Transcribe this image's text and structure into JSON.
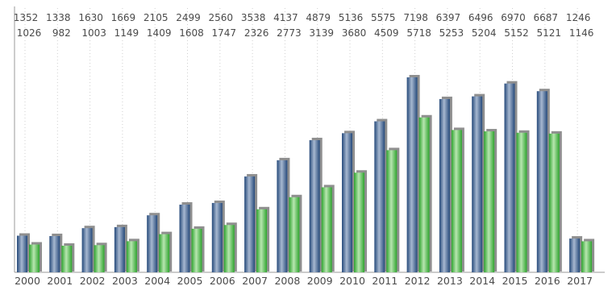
{
  "chart_data": {
    "type": "bar",
    "title": "",
    "xlabel": "",
    "ylabel": "",
    "categories": [
      "2000",
      "2001",
      "2002",
      "2003",
      "2004",
      "2005",
      "2006",
      "2007",
      "2008",
      "2009",
      "2010",
      "2011",
      "2012",
      "2013",
      "2014",
      "2015",
      "2016",
      "2017"
    ],
    "series": [
      {
        "values": [
          1352,
          1338,
          1630,
          1669,
          2105,
          2499,
          2560,
          3538,
          4137,
          4879,
          5136,
          5575,
          7198,
          6397,
          6496,
          6970,
          6687,
          1246
        ],
        "color": "#2f5b8e"
      },
      {
        "values": [
          1026,
          982,
          1003,
          1149,
          1409,
          1608,
          1747,
          2326,
          2773,
          3139,
          3680,
          4509,
          5718,
          5253,
          5204,
          5152,
          5121,
          1146
        ],
        "color": "#3cb43c"
      }
    ],
    "ylim": [
      0,
      7198
    ],
    "grid": "vertical dotted",
    "legend": "none",
    "show_value_labels": true
  }
}
